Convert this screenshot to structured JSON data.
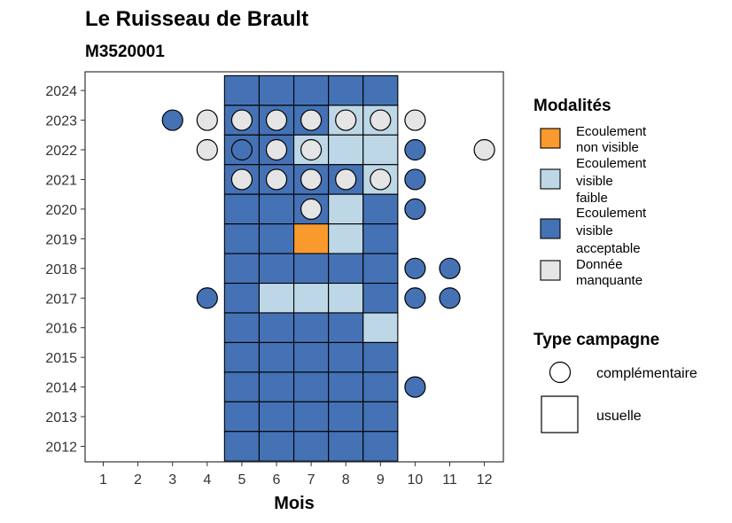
{
  "chart_data": {
    "type": "heatmap",
    "title": "Le Ruisseau de Brault",
    "subtitle": "M3520001",
    "xlabel": "Mois",
    "x_ticks": [
      "1",
      "2",
      "3",
      "4",
      "5",
      "6",
      "7",
      "8",
      "9",
      "10",
      "11",
      "12"
    ],
    "y_ticks": [
      "2012",
      "2013",
      "2014",
      "2015",
      "2016",
      "2017",
      "2018",
      "2019",
      "2020",
      "2021",
      "2022",
      "2023",
      "2024"
    ],
    "grid": false,
    "legend_position": "right",
    "colors": {
      "Ecoulement non visible": "#f89a2d",
      "Ecoulement visible faible": "#bdd7e7",
      "Ecoulement visible acceptable": "#4572b5",
      "Donnée manquante": "#e5e5e5"
    },
    "legend_modalites": {
      "title": "Modalités",
      "items": [
        {
          "key": "Ecoulement non visible",
          "lines": [
            "Ecoulement",
            "non visible"
          ]
        },
        {
          "key": "Ecoulement visible faible",
          "lines": [
            "Ecoulement",
            "visible",
            "faible"
          ]
        },
        {
          "key": "Ecoulement visible acceptable",
          "lines": [
            "Ecoulement",
            "visible",
            "acceptable"
          ]
        },
        {
          "key": "Donnée manquante",
          "lines": [
            "Donnée",
            "manquante"
          ]
        }
      ]
    },
    "legend_campagne": {
      "title": "Type campagne",
      "items": [
        {
          "shape": "circle",
          "label": "complémentaire"
        },
        {
          "shape": "square",
          "label": "usuelle"
        }
      ]
    },
    "usuelle": [
      {
        "year": 2024,
        "month": 5,
        "modalite": "Ecoulement visible acceptable"
      },
      {
        "year": 2024,
        "month": 6,
        "modalite": "Ecoulement visible acceptable"
      },
      {
        "year": 2024,
        "month": 7,
        "modalite": "Ecoulement visible acceptable"
      },
      {
        "year": 2024,
        "month": 8,
        "modalite": "Ecoulement visible acceptable"
      },
      {
        "year": 2024,
        "month": 9,
        "modalite": "Ecoulement visible acceptable"
      },
      {
        "year": 2023,
        "month": 5,
        "modalite": "Ecoulement visible acceptable"
      },
      {
        "year": 2023,
        "month": 6,
        "modalite": "Ecoulement visible acceptable"
      },
      {
        "year": 2023,
        "month": 7,
        "modalite": "Ecoulement visible acceptable"
      },
      {
        "year": 2023,
        "month": 8,
        "modalite": "Ecoulement visible faible"
      },
      {
        "year": 2023,
        "month": 9,
        "modalite": "Ecoulement visible faible"
      },
      {
        "year": 2022,
        "month": 5,
        "modalite": "Ecoulement visible acceptable"
      },
      {
        "year": 2022,
        "month": 6,
        "modalite": "Ecoulement visible acceptable"
      },
      {
        "year": 2022,
        "month": 7,
        "modalite": "Ecoulement visible faible"
      },
      {
        "year": 2022,
        "month": 8,
        "modalite": "Ecoulement visible faible"
      },
      {
        "year": 2022,
        "month": 9,
        "modalite": "Ecoulement visible faible"
      },
      {
        "year": 2021,
        "month": 5,
        "modalite": "Ecoulement visible acceptable"
      },
      {
        "year": 2021,
        "month": 6,
        "modalite": "Ecoulement visible acceptable"
      },
      {
        "year": 2021,
        "month": 7,
        "modalite": "Ecoulement visible acceptable"
      },
      {
        "year": 2021,
        "month": 8,
        "modalite": "Ecoulement visible acceptable"
      },
      {
        "year": 2021,
        "month": 9,
        "modalite": "Ecoulement visible faible"
      },
      {
        "year": 2020,
        "month": 5,
        "modalite": "Ecoulement visible acceptable"
      },
      {
        "year": 2020,
        "month": 6,
        "modalite": "Ecoulement visible acceptable"
      },
      {
        "year": 2020,
        "month": 7,
        "modalite": "Ecoulement visible acceptable"
      },
      {
        "year": 2020,
        "month": 8,
        "modalite": "Ecoulement visible faible"
      },
      {
        "year": 2020,
        "month": 9,
        "modalite": "Ecoulement visible acceptable"
      },
      {
        "year": 2019,
        "month": 5,
        "modalite": "Ecoulement visible acceptable"
      },
      {
        "year": 2019,
        "month": 6,
        "modalite": "Ecoulement visible acceptable"
      },
      {
        "year": 2019,
        "month": 7,
        "modalite": "Ecoulement non visible"
      },
      {
        "year": 2019,
        "month": 8,
        "modalite": "Ecoulement visible faible"
      },
      {
        "year": 2019,
        "month": 9,
        "modalite": "Ecoulement visible acceptable"
      },
      {
        "year": 2018,
        "month": 5,
        "modalite": "Ecoulement visible acceptable"
      },
      {
        "year": 2018,
        "month": 6,
        "modalite": "Ecoulement visible acceptable"
      },
      {
        "year": 2018,
        "month": 7,
        "modalite": "Ecoulement visible acceptable"
      },
      {
        "year": 2018,
        "month": 8,
        "modalite": "Ecoulement visible acceptable"
      },
      {
        "year": 2018,
        "month": 9,
        "modalite": "Ecoulement visible acceptable"
      },
      {
        "year": 2017,
        "month": 5,
        "modalite": "Ecoulement visible acceptable"
      },
      {
        "year": 2017,
        "month": 6,
        "modalite": "Ecoulement visible faible"
      },
      {
        "year": 2017,
        "month": 7,
        "modalite": "Ecoulement visible faible"
      },
      {
        "year": 2017,
        "month": 8,
        "modalite": "Ecoulement visible faible"
      },
      {
        "year": 2017,
        "month": 9,
        "modalite": "Ecoulement visible acceptable"
      },
      {
        "year": 2016,
        "month": 5,
        "modalite": "Ecoulement visible acceptable"
      },
      {
        "year": 2016,
        "month": 6,
        "modalite": "Ecoulement visible acceptable"
      },
      {
        "year": 2016,
        "month": 7,
        "modalite": "Ecoulement visible acceptable"
      },
      {
        "year": 2016,
        "month": 8,
        "modalite": "Ecoulement visible acceptable"
      },
      {
        "year": 2016,
        "month": 9,
        "modalite": "Ecoulement visible faible"
      },
      {
        "year": 2015,
        "month": 5,
        "modalite": "Ecoulement visible acceptable"
      },
      {
        "year": 2015,
        "month": 6,
        "modalite": "Ecoulement visible acceptable"
      },
      {
        "year": 2015,
        "month": 7,
        "modalite": "Ecoulement visible acceptable"
      },
      {
        "year": 2015,
        "month": 8,
        "modalite": "Ecoulement visible acceptable"
      },
      {
        "year": 2015,
        "month": 9,
        "modalite": "Ecoulement visible acceptable"
      },
      {
        "year": 2014,
        "month": 5,
        "modalite": "Ecoulement visible acceptable"
      },
      {
        "year": 2014,
        "month": 6,
        "modalite": "Ecoulement visible acceptable"
      },
      {
        "year": 2014,
        "month": 7,
        "modalite": "Ecoulement visible acceptable"
      },
      {
        "year": 2014,
        "month": 8,
        "modalite": "Ecoulement visible acceptable"
      },
      {
        "year": 2014,
        "month": 9,
        "modalite": "Ecoulement visible acceptable"
      },
      {
        "year": 2013,
        "month": 5,
        "modalite": "Ecoulement visible acceptable"
      },
      {
        "year": 2013,
        "month": 6,
        "modalite": "Ecoulement visible acceptable"
      },
      {
        "year": 2013,
        "month": 7,
        "modalite": "Ecoulement visible acceptable"
      },
      {
        "year": 2013,
        "month": 8,
        "modalite": "Ecoulement visible acceptable"
      },
      {
        "year": 2013,
        "month": 9,
        "modalite": "Ecoulement visible acceptable"
      },
      {
        "year": 2012,
        "month": 5,
        "modalite": "Ecoulement visible acceptable"
      },
      {
        "year": 2012,
        "month": 6,
        "modalite": "Ecoulement visible acceptable"
      },
      {
        "year": 2012,
        "month": 7,
        "modalite": "Ecoulement visible acceptable"
      },
      {
        "year": 2012,
        "month": 8,
        "modalite": "Ecoulement visible acceptable"
      },
      {
        "year": 2012,
        "month": 9,
        "modalite": "Ecoulement visible acceptable"
      }
    ],
    "complementaire": [
      {
        "year": 2023,
        "month": 3,
        "modalite": "Ecoulement visible acceptable"
      },
      {
        "year": 2023,
        "month": 4,
        "modalite": "Donnée manquante"
      },
      {
        "year": 2023,
        "month": 5,
        "modalite": "Donnée manquante"
      },
      {
        "year": 2023,
        "month": 6,
        "modalite": "Donnée manquante"
      },
      {
        "year": 2023,
        "month": 7,
        "modalite": "Donnée manquante"
      },
      {
        "year": 2023,
        "month": 8,
        "modalite": "Donnée manquante"
      },
      {
        "year": 2023,
        "month": 9,
        "modalite": "Donnée manquante"
      },
      {
        "year": 2023,
        "month": 10,
        "modalite": "Donnée manquante"
      },
      {
        "year": 2022,
        "month": 4,
        "modalite": "Donnée manquante"
      },
      {
        "year": 2022,
        "month": 5,
        "modalite": "Ecoulement visible acceptable"
      },
      {
        "year": 2022,
        "month": 6,
        "modalite": "Donnée manquante"
      },
      {
        "year": 2022,
        "month": 7,
        "modalite": "Donnée manquante"
      },
      {
        "year": 2022,
        "month": 10,
        "modalite": "Ecoulement visible acceptable"
      },
      {
        "year": 2022,
        "month": 12,
        "modalite": "Donnée manquante"
      },
      {
        "year": 2021,
        "month": 5,
        "modalite": "Donnée manquante"
      },
      {
        "year": 2021,
        "month": 6,
        "modalite": "Donnée manquante"
      },
      {
        "year": 2021,
        "month": 7,
        "modalite": "Donnée manquante"
      },
      {
        "year": 2021,
        "month": 8,
        "modalite": "Donnée manquante"
      },
      {
        "year": 2021,
        "month": 9,
        "modalite": "Donnée manquante"
      },
      {
        "year": 2021,
        "month": 10,
        "modalite": "Ecoulement visible acceptable"
      },
      {
        "year": 2020,
        "month": 7,
        "modalite": "Donnée manquante"
      },
      {
        "year": 2020,
        "month": 10,
        "modalite": "Ecoulement visible acceptable"
      },
      {
        "year": 2018,
        "month": 10,
        "modalite": "Ecoulement visible acceptable"
      },
      {
        "year": 2018,
        "month": 11,
        "modalite": "Ecoulement visible acceptable"
      },
      {
        "year": 2017,
        "month": 4,
        "modalite": "Ecoulement visible acceptable"
      },
      {
        "year": 2017,
        "month": 10,
        "modalite": "Ecoulement visible acceptable"
      },
      {
        "year": 2017,
        "month": 11,
        "modalite": "Ecoulement visible acceptable"
      },
      {
        "year": 2014,
        "month": 10,
        "modalite": "Ecoulement visible acceptable"
      }
    ]
  }
}
